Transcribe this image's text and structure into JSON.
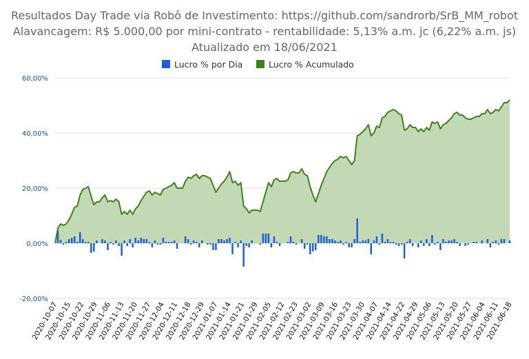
{
  "chart_data": {
    "type": "bar+area",
    "title_lines": [
      "Resultados Day Trade via Robô de Investimento: https://github.com/sandrorb/SrB_MM_robot",
      "Alavancagem: R$ 5.000,00 por mini-contrato - rentabilidade: 5,13% a.m. jc (6,22% a.m. js)",
      "Atualizado em 18/06/2021"
    ],
    "legend": [
      {
        "label": "Lucro % por Dia",
        "color": "#1f5fd6"
      },
      {
        "label": "Lucro % Acumulado",
        "color": "#3f7f1f"
      }
    ],
    "ylim": [
      -20,
      60
    ],
    "yticks": [
      -20,
      0,
      20,
      40,
      60
    ],
    "ytick_labels": [
      "-20,00%",
      "0,00%",
      "20,00%",
      "40,00%",
      "60,00%"
    ],
    "xtick_labels": [
      "2020-10-07",
      "2020-10-15",
      "2020-10-22",
      "2020-10-29",
      "2020-11-06",
      "2020-11-13",
      "2020-11-20",
      "2020-11-27",
      "2020-12-04",
      "2020-12-11",
      "2020-12-18",
      "2020-12-29",
      "2021-01-07",
      "2021-01-14",
      "2021-01-21",
      "2021-01-29",
      "2021-02-05",
      "2021-02-12",
      "2021-02-23",
      "2021-03-02",
      "2021-03-09",
      "2021-03-16",
      "2021-03-23",
      "2021-03-30",
      "2021-04-07",
      "2021-04-14",
      "2021-04-22",
      "2021-04-29",
      "2021-05-06",
      "2021-05-13",
      "2021-05-20",
      "2021-05-27",
      "2021-06-04",
      "2021-06-11",
      "2021-06-18"
    ],
    "series": [
      {
        "name": "Lucro % Acumulado",
        "type": "area",
        "color": "#3f7f1f",
        "fill": "#c3d8b4",
        "values": [
          0,
          5.5,
          7,
          6.5,
          7,
          8.5,
          10.5,
          13,
          13.5,
          17.5,
          19.5,
          20,
          20.5,
          17,
          14,
          15,
          15,
          16.5,
          17.5,
          15,
          15.5,
          15,
          16,
          15,
          10.5,
          11.5,
          10.5,
          12,
          10.5,
          12.5,
          13.5,
          15.5,
          17,
          18.5,
          19,
          17.5,
          18.5,
          18,
          17.5,
          19.5,
          20,
          20.5,
          21,
          22,
          20,
          20,
          20,
          22.5,
          24,
          23.5,
          24.5,
          25,
          23.5,
          24.5,
          24.5,
          24,
          23.5,
          21,
          18.5,
          20,
          21.5,
          22.5,
          24,
          26,
          22,
          22.5,
          21,
          22,
          13.5,
          12.5,
          11,
          12,
          12,
          12,
          11.5,
          15,
          18.5,
          22,
          20.5,
          23,
          23.5,
          22.5,
          22.5,
          22.5,
          23,
          25.5,
          26,
          25.5,
          25.5,
          27,
          25,
          24.5,
          20.5,
          17.5,
          15,
          18,
          21,
          23.5,
          26,
          27.5,
          29,
          30,
          30.5,
          31.5,
          31,
          31.5,
          30,
          28.5,
          30,
          39,
          39.5,
          40.5,
          41.5,
          43,
          39,
          40,
          42.5,
          42,
          45.5,
          46,
          47.5,
          48,
          48.5,
          48,
          47,
          46.5,
          41,
          41.5,
          43,
          42,
          42,
          40.5,
          41.5,
          40.5,
          42,
          41,
          44,
          43.5,
          44,
          41.5,
          43,
          43.5,
          44.5,
          45.5,
          47,
          47.5,
          46.5,
          46.5,
          45.5,
          45,
          45,
          45.5,
          46,
          46,
          47,
          47,
          48.5,
          47,
          47.5,
          48.5,
          48,
          49.5,
          51,
          51,
          52
        ]
      },
      {
        "name": "Lucro % por Dia",
        "type": "bar",
        "color": "#1f5fd6",
        "values": [
          0,
          4.5,
          1.2,
          -0.5,
          0.5,
          1.5,
          2,
          2.5,
          0.5,
          4,
          1.5,
          0.5,
          0.5,
          -3.5,
          -3,
          1,
          0,
          1.5,
          1,
          -2.5,
          0.5,
          -0.5,
          1,
          -1,
          -4.5,
          1,
          -1,
          1.5,
          -1.5,
          2,
          1,
          2,
          1.5,
          1.5,
          0.5,
          -1.5,
          1,
          -0.5,
          -0.5,
          2,
          0.5,
          0.5,
          0.5,
          1,
          -2,
          0,
          0,
          2.5,
          1.5,
          -0.5,
          1,
          0.5,
          -1.5,
          1,
          0,
          -0.5,
          -0.5,
          -2.5,
          -2.5,
          1.5,
          1.5,
          1,
          1.5,
          2,
          -4,
          0.5,
          -1.5,
          1,
          -8.5,
          -1,
          -1.5,
          1,
          0,
          0,
          -0.5,
          3.5,
          3.5,
          3.5,
          -1.5,
          2.5,
          0.5,
          -1,
          0,
          0,
          0.5,
          2.5,
          0.5,
          -0.5,
          0,
          1.5,
          -2,
          -0.5,
          -4,
          -3,
          -2.5,
          3,
          3,
          2.5,
          2.5,
          1.5,
          1.5,
          1,
          0.5,
          1,
          -0.5,
          0.5,
          -1.5,
          -1.5,
          1.5,
          9,
          0.5,
          1,
          1,
          1.5,
          -4,
          1,
          2.5,
          -0.5,
          3.5,
          0.5,
          1.5,
          0.5,
          0.5,
          -0.5,
          -1,
          -0.5,
          -5.5,
          0.5,
          1.5,
          -1,
          0,
          -1.5,
          1,
          -1,
          1.5,
          -1,
          3,
          -0.5,
          0.5,
          -2.5,
          1.5,
          0.5,
          1,
          1,
          1.5,
          0.5,
          -1,
          0,
          -1,
          -0.5,
          0,
          0.5,
          0.5,
          0,
          1,
          0,
          1.5,
          -1.5,
          0.5,
          1,
          -0.5,
          1.5,
          1.5,
          0,
          1
        ]
      }
    ]
  }
}
